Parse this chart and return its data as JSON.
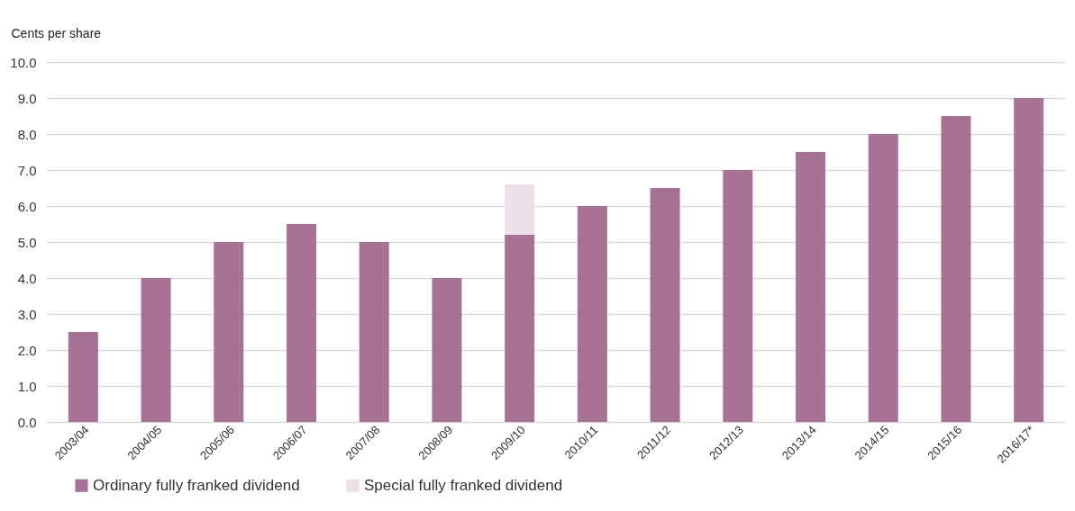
{
  "chart_data": {
    "type": "bar",
    "ylabel": "Cents per share",
    "categories": [
      "2003/04",
      "2004/05",
      "2005/06",
      "2006/07",
      "2007/08",
      "2008/09",
      "2009/10",
      "2010/11",
      "2011/12",
      "2012/13",
      "2013/14",
      "2014/15",
      "2015/16",
      "2016/17*"
    ],
    "series": [
      {
        "name": "Ordinary fully franked dividend",
        "color": "#a87296",
        "values": [
          2.5,
          4.0,
          5.0,
          5.5,
          5.0,
          4.0,
          5.2,
          6.0,
          6.5,
          7.0,
          7.5,
          8.0,
          8.5,
          9.0
        ]
      },
      {
        "name": "Special fully franked dividend",
        "color": "#ede0e8",
        "values": [
          null,
          null,
          null,
          null,
          null,
          null,
          1.4,
          null,
          null,
          null,
          null,
          null,
          null,
          null
        ]
      }
    ],
    "stacked": true,
    "ylim": [
      0,
      10
    ],
    "yticks": [
      {
        "value": 0,
        "label": "0.0"
      },
      {
        "value": 1,
        "label": "1.0"
      },
      {
        "value": 2,
        "label": "2.0"
      },
      {
        "value": 3,
        "label": "3.0"
      },
      {
        "value": 4,
        "label": "4.0"
      },
      {
        "value": 5,
        "label": "5.0"
      },
      {
        "value": 6,
        "label": "6.0"
      },
      {
        "value": 7,
        "label": "7.0"
      },
      {
        "value": 8,
        "label": "8.0"
      },
      {
        "value": 9,
        "label": "9.0"
      },
      {
        "value": 10,
        "label": "10.0"
      }
    ],
    "grid": "y",
    "legend": "bottom left"
  }
}
